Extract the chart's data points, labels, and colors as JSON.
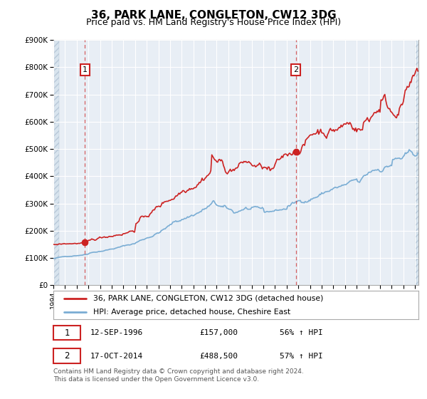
{
  "title": "36, PARK LANE, CONGLETON, CW12 3DG",
  "subtitle": "Price paid vs. HM Land Registry's House Price Index (HPI)",
  "legend_line1": "36, PARK LANE, CONGLETON, CW12 3DG (detached house)",
  "legend_line2": "HPI: Average price, detached house, Cheshire East",
  "sale1_date": "12-SEP-1996",
  "sale1_price": "£157,000",
  "sale1_hpi": "56% ↑ HPI",
  "sale1_year": 1996.71,
  "sale1_value": 157000,
  "sale2_date": "17-OCT-2014",
  "sale2_price": "£488,500",
  "sale2_hpi": "57% ↑ HPI",
  "sale2_year": 2014.79,
  "sale2_value": 488500,
  "footer": "Contains HM Land Registry data © Crown copyright and database right 2024.\nThis data is licensed under the Open Government Licence v3.0.",
  "red_color": "#cc2222",
  "blue_color": "#7aadd4",
  "ylim_min": 0,
  "ylim_max": 900000,
  "xlim_min": 1994.0,
  "xlim_max": 2025.3,
  "background_plot": "#e8eef5",
  "background_fig": "#ffffff",
  "grid_color": "#ffffff",
  "title_fontsize": 11,
  "subtitle_fontsize": 9
}
